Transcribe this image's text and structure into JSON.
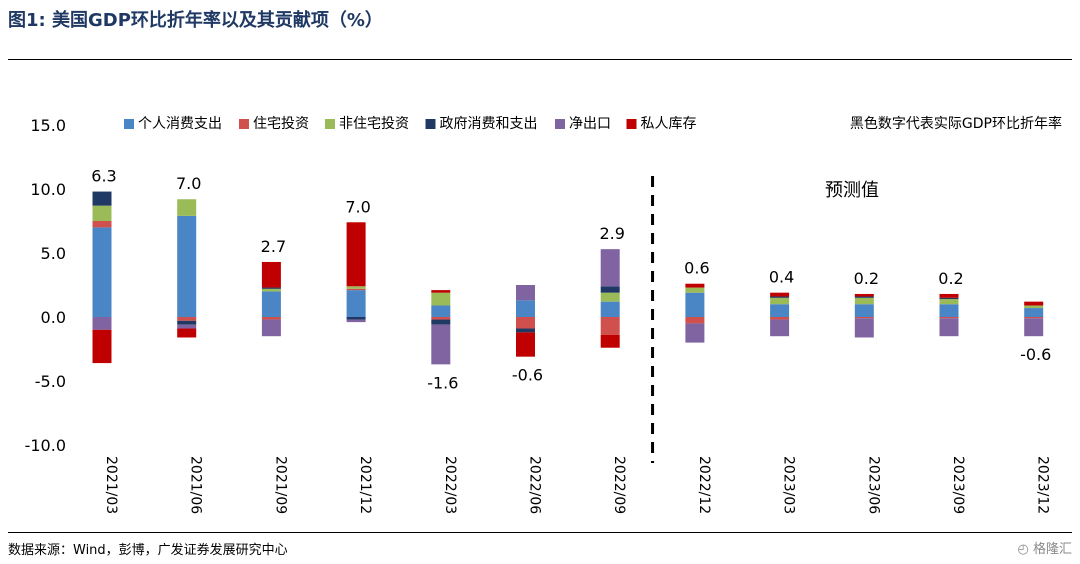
{
  "figure": {
    "title": "图1:  美国GDP环比折年率以及其贡献项（%）",
    "source": "数据来源：Wind，彭博，广发证券发展研究中心",
    "watermark": "格隆汇"
  },
  "chart_data": {
    "type": "bar",
    "stacked": true,
    "categories": [
      "2021/03",
      "2021/06",
      "2021/09",
      "2021/12",
      "2022/03",
      "2022/06",
      "2022/09",
      "2022/12",
      "2023/03",
      "2023/06",
      "2023/09",
      "2023/12"
    ],
    "ylim": [
      -10,
      15
    ],
    "yticks": [
      -10,
      -5,
      0,
      5,
      10,
      15
    ],
    "ytick_labels": [
      "-10.0",
      "-5.0",
      "0.0",
      "5.0",
      "10.0",
      "15.0"
    ],
    "xlabel": "",
    "ylabel": "",
    "grid": false,
    "legend_position": "top",
    "series": [
      {
        "name": "个人消费支出",
        "color": "#4a86c5",
        "values": [
          7.0,
          7.9,
          2.0,
          2.1,
          0.9,
          1.3,
          1.2,
          1.9,
          1.0,
          1.0,
          1.0,
          0.7
        ]
      },
      {
        "name": "住宅投资",
        "color": "#d0504e",
        "values": [
          0.5,
          -0.3,
          -0.2,
          0.1,
          -0.2,
          -0.9,
          -1.4,
          -0.5,
          -0.2,
          -0.1,
          -0.1,
          -0.1
        ]
      },
      {
        "name": "非住宅投资",
        "color": "#9bbb59",
        "values": [
          1.2,
          1.3,
          0.2,
          0.2,
          1.0,
          0.0,
          0.7,
          0.4,
          0.5,
          0.5,
          0.4,
          0.2
        ]
      },
      {
        "name": "政府消费和支出",
        "color": "#1f3864",
        "values": [
          1.1,
          -0.3,
          0.1,
          -0.2,
          -0.4,
          -0.3,
          0.5,
          0.0,
          0.1,
          0.1,
          0.1,
          0.0
        ]
      },
      {
        "name": "净出口",
        "color": "#8064a2",
        "values": [
          -1.0,
          -0.3,
          -1.3,
          -0.2,
          -3.1,
          1.2,
          2.9,
          -1.5,
          -1.3,
          -1.5,
          -1.4,
          -1.4
        ]
      },
      {
        "name": "私人库存",
        "color": "#c00000",
        "values": [
          -2.6,
          -0.7,
          2.0,
          5.0,
          0.2,
          -1.9,
          -1.0,
          0.3,
          0.3,
          0.2,
          0.3,
          0.3
        ]
      }
    ],
    "gdp_total": [
      6.3,
      7.0,
      2.7,
      7.0,
      -1.6,
      -0.6,
      2.9,
      0.6,
      0.4,
      0.2,
      0.2,
      -0.6
    ],
    "gdp_total_labels": [
      "6.3",
      "7.0",
      "2.7",
      "7.0",
      "-1.6",
      "-0.6",
      "2.9",
      "0.6",
      "0.4",
      "0.2",
      "0.2",
      "-0.6"
    ],
    "legend_note": "黑色数字代表实际GDP环比折年率",
    "annotation": "预测值",
    "forecast_divider_after": "2022/09"
  }
}
